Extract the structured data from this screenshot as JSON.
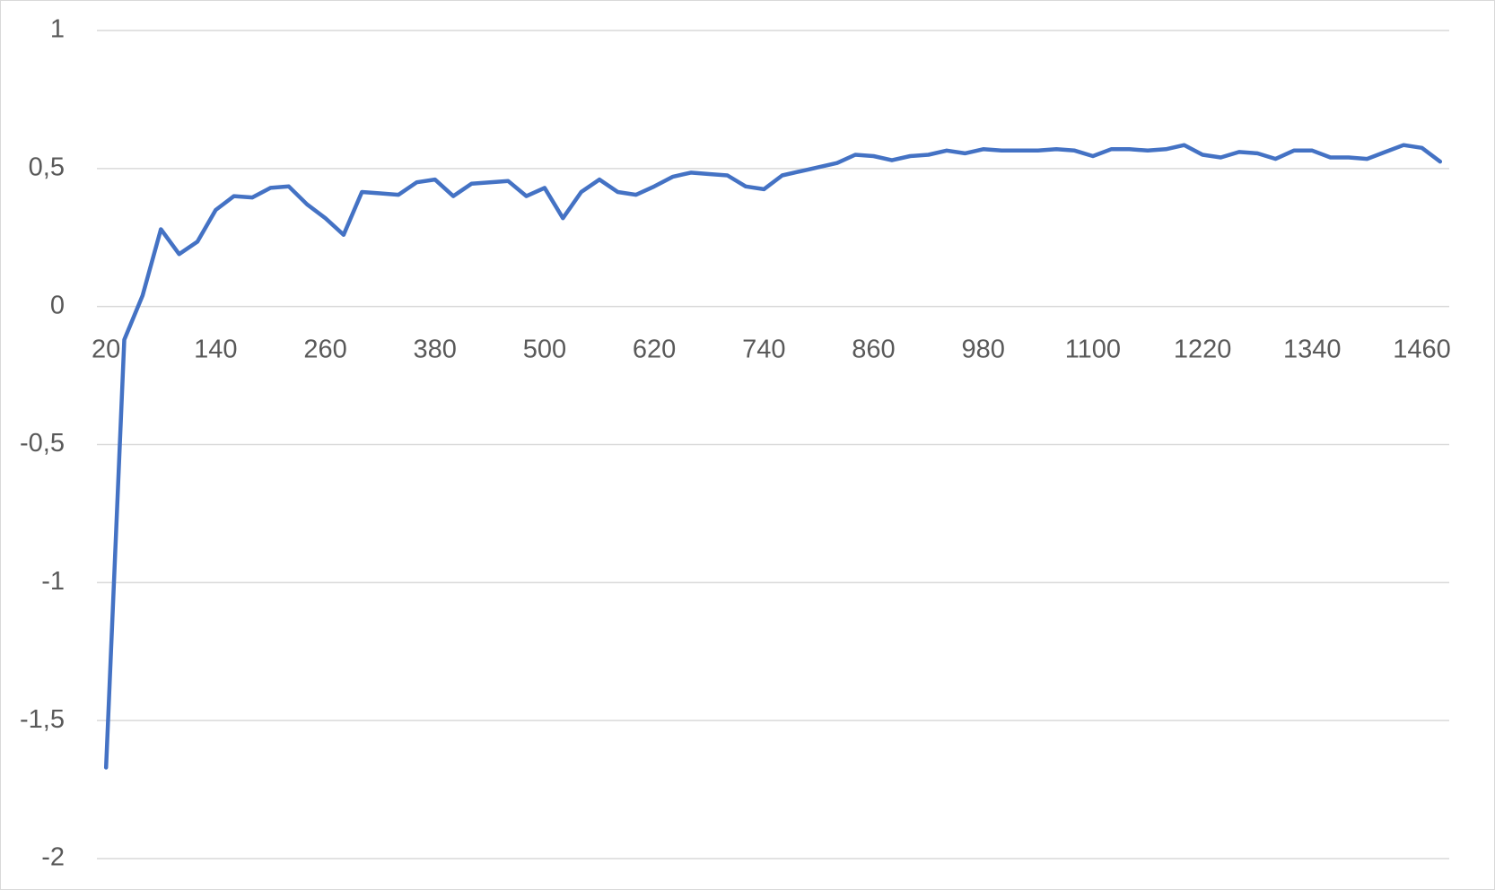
{
  "chart_data": {
    "type": "line",
    "categories": [
      "20",
      null,
      null,
      null,
      null,
      null,
      "140",
      null,
      null,
      null,
      null,
      null,
      "260",
      null,
      null,
      null,
      null,
      null,
      "380",
      null,
      null,
      null,
      null,
      null,
      "500",
      null,
      null,
      null,
      null,
      null,
      "620",
      null,
      null,
      null,
      null,
      null,
      "740",
      null,
      null,
      null,
      null,
      null,
      "860",
      null,
      null,
      null,
      null,
      null,
      "980",
      null,
      null,
      null,
      null,
      null,
      "1100",
      null,
      null,
      null,
      null,
      null,
      "1220",
      null,
      null,
      null,
      null,
      null,
      "1340",
      null,
      null,
      null,
      null,
      null,
      "1460",
      null
    ],
    "series": [
      {
        "color": "#4472c4",
        "values": [
          -1.67,
          -0.12,
          0.04,
          0.28,
          0.19,
          0.235,
          0.35,
          0.4,
          0.395,
          0.43,
          0.435,
          0.37,
          0.32,
          0.26,
          0.415,
          0.41,
          0.405,
          0.45,
          0.46,
          0.4,
          0.445,
          0.45,
          0.455,
          0.4,
          0.43,
          0.32,
          0.415,
          0.46,
          0.415,
          0.405,
          0.435,
          0.47,
          0.485,
          0.48,
          0.475,
          0.435,
          0.425,
          0.475,
          0.49,
          0.505,
          0.52,
          0.55,
          0.545,
          0.53,
          0.545,
          0.55,
          0.565,
          0.555,
          0.57,
          0.565,
          0.565,
          0.565,
          0.57,
          0.565,
          0.545,
          0.57,
          0.57,
          0.565,
          0.57,
          0.585,
          0.55,
          0.54,
          0.56,
          0.555,
          0.535,
          0.565,
          0.565,
          0.54,
          0.54,
          0.535,
          0.56,
          0.585,
          0.575,
          0.525
        ]
      }
    ],
    "ylim": [
      -2,
      1
    ],
    "yticks": [
      -2,
      {
        "value": -1.5,
        "label": "-1,5"
      },
      -1,
      {
        "value": -0.5,
        "label": "-0,5"
      },
      0,
      {
        "value": 0.5,
        "label": "0,5"
      },
      1
    ],
    "grid": true
  }
}
